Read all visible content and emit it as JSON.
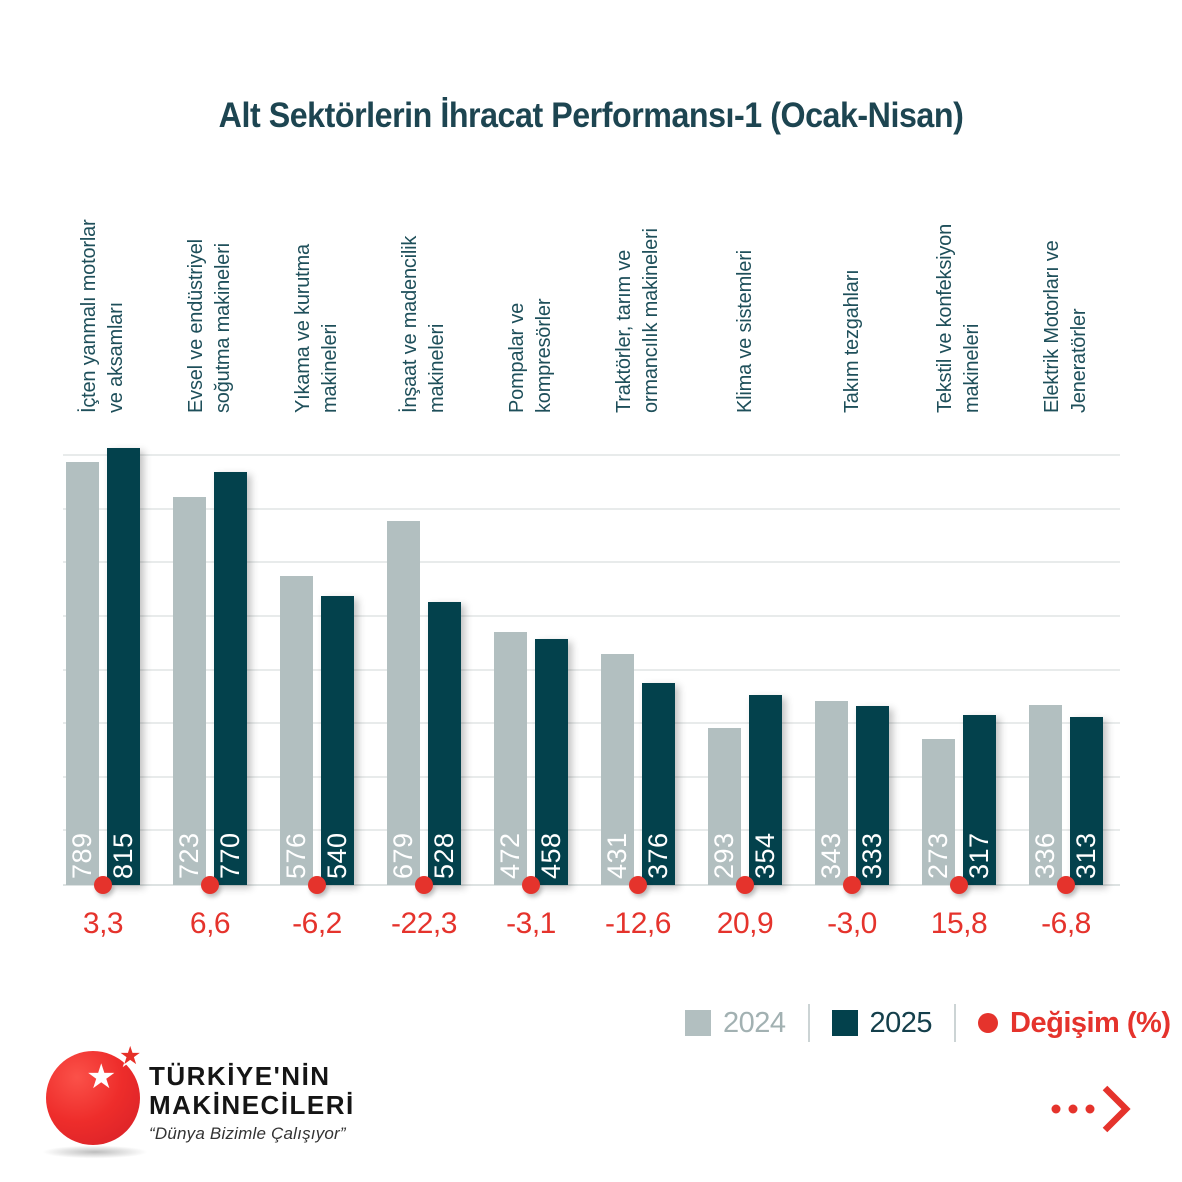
{
  "title": "Alt Sektörlerin İhracat Performansı-1 (Ocak-Nisan)",
  "chart_data": {
    "type": "bar",
    "title": "Alt Sektörlerin İhracat Performansı-1 (Ocak-Nisan)",
    "categories": [
      "İçten yanmalı motorlar ve aksamları",
      "Evsel ve endüstriyel soğutma makineleri",
      "Yıkama ve kurutma makineleri",
      "İnşaat ve madencilik makineleri",
      "Pompalar ve kompresörler",
      "Traktörler, tarım ve ormancılık makineleri",
      "Klima ve sistemleri",
      "Takım tezgahları",
      "Tekstil ve konfeksiyon makineleri",
      "Elektrik Motorları ve Jeneratörler"
    ],
    "category_lines": [
      [
        "İçten yanmalı motorlar",
        "ve aksamları"
      ],
      [
        "Evsel ve endüstriyel",
        "soğutma makineleri"
      ],
      [
        "Yıkama ve kurutma",
        "makineleri"
      ],
      [
        "İnşaat ve madencilik",
        "makineleri"
      ],
      [
        "Pompalar ve",
        "kompresörler"
      ],
      [
        "Traktörler, tarım ve",
        "ormancılık makineleri"
      ],
      [
        "Klima ve sistemleri"
      ],
      [
        "Takım tezgahları"
      ],
      [
        "Tekstil ve konfeksiyon",
        "makineleri"
      ],
      [
        "Elektrik Motorları ve",
        "Jeneratörler"
      ]
    ],
    "series": [
      {
        "name": "2024",
        "values": [
          789,
          723,
          576,
          679,
          472,
          431,
          293,
          343,
          273,
          336
        ]
      },
      {
        "name": "2025",
        "values": [
          815,
          770,
          540,
          528,
          458,
          376,
          354,
          333,
          317,
          313
        ]
      }
    ],
    "change_percent": [
      "3,3",
      "6,6",
      "-6,2",
      "-22,3",
      "-3,1",
      "-12,6",
      "20,9",
      "-3,0",
      "15,8",
      "-6,8"
    ],
    "ylim": [
      0,
      860
    ],
    "gridline_step": 100,
    "grid": true,
    "legend_position": "bottom-right"
  },
  "legend": {
    "items": [
      {
        "label": "2024",
        "swatch": "square",
        "color": "#b2bfc0"
      },
      {
        "label": "2025",
        "swatch": "square",
        "color": "#03414c"
      },
      {
        "label": "Değişim (%)",
        "swatch": "dot",
        "color": "#e5332c"
      }
    ]
  },
  "colors": {
    "bar_2024": "#b2bfc0",
    "bar_2025": "#03414c",
    "accent_red": "#e5332c",
    "grid": "#e8ebeb",
    "label_teal": "#1e4f5a",
    "value_text": "#ffffff",
    "legend_2024_text": "#a2b1b2",
    "legend_2025_text": "#143f4b"
  },
  "logo": {
    "line1": "TÜRKİYE'NİN",
    "line2": "MAKİNECİLERİ",
    "tagline": "“Dünya Bizimle Çalışıyor”"
  },
  "icons": {
    "more": "ellipsis-chevron-right",
    "stars": "star"
  }
}
